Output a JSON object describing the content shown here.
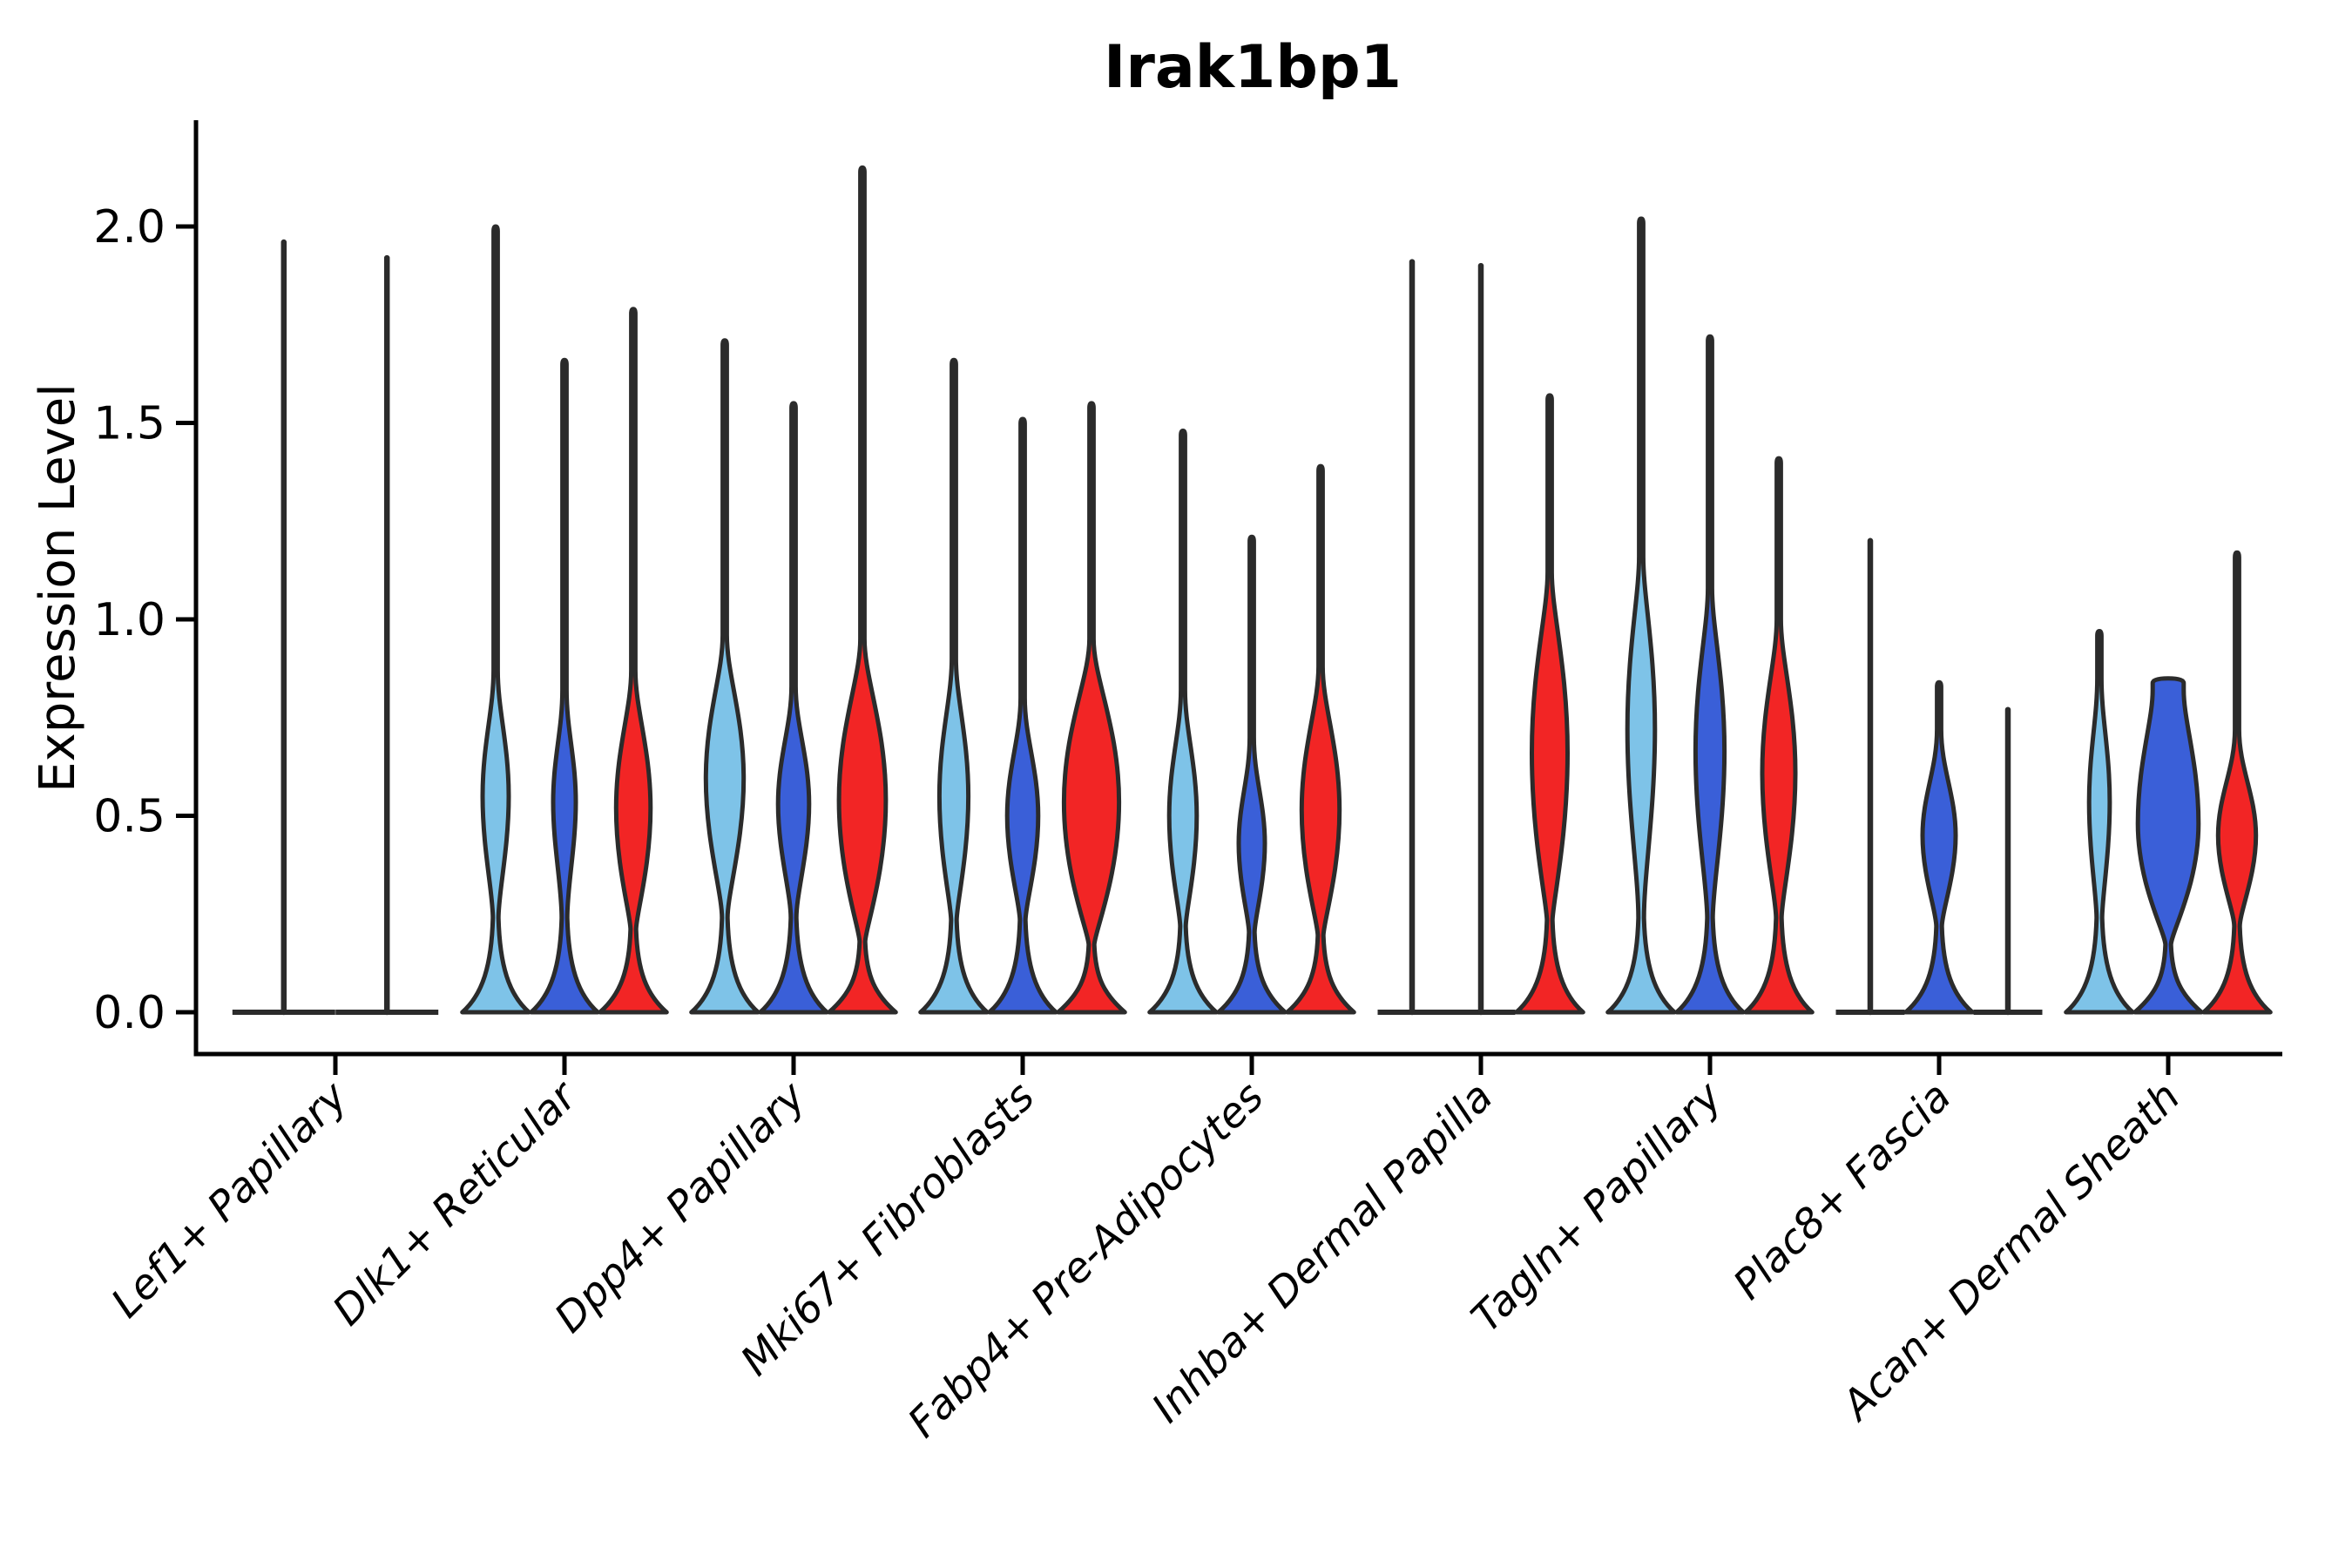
{
  "chart_data": {
    "type": "violin",
    "title": "Irak1bp1",
    "ylabel": "Expression Level",
    "xlabel": "",
    "yticks": [
      0.0,
      0.5,
      1.0,
      1.5,
      2.0
    ],
    "ytick_labels": [
      "0.0",
      "0.5",
      "1.0",
      "1.5",
      "2.0"
    ],
    "ylim": [
      -0.105,
      2.27
    ],
    "grid": false,
    "legend": "none",
    "series_colors": {
      "lightblue": "#7EC3E8",
      "blue": "#3A5FD8",
      "red": "#F22525"
    },
    "outline_color": "#2B2B2B",
    "axis_color": "#000000",
    "categories": [
      "Lef1+ Papillary",
      "Dlk1+ Reticular",
      "Dpp4+ Papillary",
      "Mki67+ Fibroblasts",
      "Fabp4+ Pre-Adipocytes",
      "Inhba+ Dermal Papilla",
      "Tagln+ Papillary",
      "Plac8+ Fascia",
      "Acan+ Dermal Sheath"
    ],
    "groups": [
      {
        "label": "Lef1+ Papillary",
        "violins": [
          {
            "series": "lightblue",
            "shape": "spike",
            "max": 1.96
          },
          {
            "series": "blue",
            "shape": "spike",
            "max": 1.92
          }
        ]
      },
      {
        "label": "Dlk1+ Reticular",
        "violins": [
          {
            "series": "lightblue",
            "shape": "violin",
            "max": 2.0,
            "bulge": [
              0.33,
              0.77
            ],
            "bulge_w": 0.38
          },
          {
            "series": "blue",
            "shape": "violin",
            "max": 1.66,
            "bulge": [
              0.35,
              0.72
            ],
            "bulge_w": 0.33
          },
          {
            "series": "red",
            "shape": "violin",
            "max": 1.79,
            "bulge": [
              0.27,
              0.77
            ],
            "bulge_w": 0.5
          }
        ]
      },
      {
        "label": "Dpp4+ Papillary",
        "violins": [
          {
            "series": "lightblue",
            "shape": "violin",
            "max": 1.71,
            "bulge": [
              0.33,
              0.86
            ],
            "bulge_w": 0.55
          },
          {
            "series": "blue",
            "shape": "violin",
            "max": 1.55,
            "bulge": [
              0.33,
              0.73
            ],
            "bulge_w": 0.45
          },
          {
            "series": "red",
            "shape": "violin",
            "max": 2.15,
            "bulge": [
              0.23,
              0.85
            ],
            "bulge_w": 0.68
          }
        ]
      },
      {
        "label": "Mki67+ Fibroblasts",
        "violins": [
          {
            "series": "lightblue",
            "shape": "violin",
            "max": 1.66,
            "bulge": [
              0.3,
              0.8
            ],
            "bulge_w": 0.42
          },
          {
            "series": "blue",
            "shape": "violin",
            "max": 1.51,
            "bulge": [
              0.3,
              0.7
            ],
            "bulge_w": 0.45
          },
          {
            "series": "red",
            "shape": "violin",
            "max": 1.55,
            "bulge": [
              0.22,
              0.85
            ],
            "bulge_w": 0.8
          }
        ]
      },
      {
        "label": "Fabp4+ Pre-Adipocytes",
        "violins": [
          {
            "series": "lightblue",
            "shape": "violin",
            "max": 1.48,
            "bulge": [
              0.28,
              0.72
            ],
            "bulge_w": 0.4
          },
          {
            "series": "blue",
            "shape": "violin",
            "max": 1.21,
            "bulge": [
              0.26,
              0.6
            ],
            "bulge_w": 0.38
          },
          {
            "series": "red",
            "shape": "violin",
            "max": 1.39,
            "bulge": [
              0.25,
              0.78
            ],
            "bulge_w": 0.55
          }
        ]
      },
      {
        "label": "Inhba+ Dermal Papilla",
        "violins": [
          {
            "series": "lightblue",
            "shape": "spike",
            "max": 1.91
          },
          {
            "series": "blue",
            "shape": "spike",
            "max": 1.9
          },
          {
            "series": "red",
            "shape": "violin",
            "max": 1.57,
            "bulge": [
              0.3,
              1.02
            ],
            "bulge_w": 0.52
          }
        ]
      },
      {
        "label": "Tagln+ Papillary",
        "violins": [
          {
            "series": "lightblue",
            "shape": "violin",
            "max": 2.02,
            "bulge": [
              0.38,
              1.06
            ],
            "bulge_w": 0.4
          },
          {
            "series": "blue",
            "shape": "violin",
            "max": 1.72,
            "bulge": [
              0.35,
              0.98
            ],
            "bulge_w": 0.42
          },
          {
            "series": "red",
            "shape": "violin",
            "max": 1.41,
            "bulge": [
              0.32,
              0.9
            ],
            "bulge_w": 0.48
          }
        ]
      },
      {
        "label": "Plac8+ Fascia",
        "violins": [
          {
            "series": "lightblue",
            "shape": "spike",
            "max": 1.2
          },
          {
            "series": "blue",
            "shape": "violin",
            "max": 0.84,
            "bulge": [
              0.28,
              0.62
            ],
            "bulge_w": 0.48
          },
          {
            "series": "red",
            "shape": "spike",
            "max": 0.77
          }
        ]
      },
      {
        "label": "Acan+ Dermal Sheath",
        "violins": [
          {
            "series": "lightblue",
            "shape": "violin",
            "max": 0.97,
            "bulge": [
              0.32,
              0.75
            ],
            "bulge_w": 0.3
          },
          {
            "series": "blue",
            "shape": "violin",
            "max": 0.85,
            "bulge": [
              0.22,
              0.74
            ],
            "bulge_w": 0.88,
            "spike_w": 0.45
          },
          {
            "series": "red",
            "shape": "violin",
            "max": 1.17,
            "bulge": [
              0.28,
              0.62
            ],
            "bulge_w": 0.55
          }
        ]
      }
    ]
  }
}
